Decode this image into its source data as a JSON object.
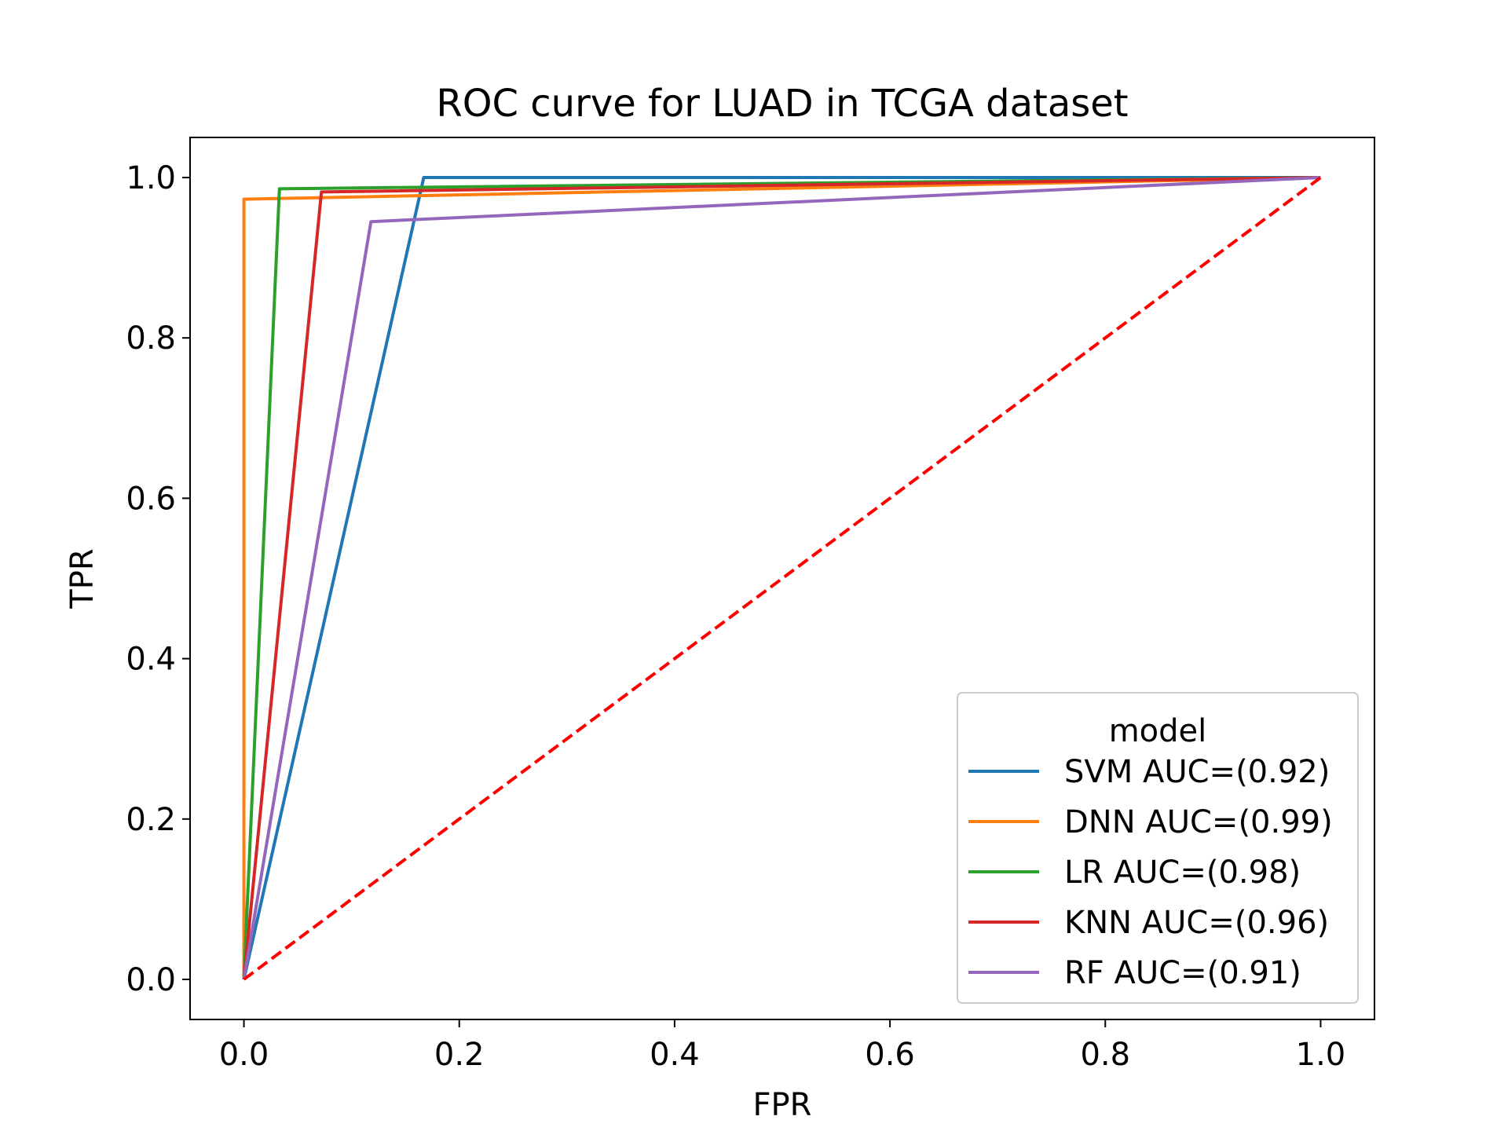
{
  "chart_data": {
    "type": "line",
    "title": "ROC curve for LUAD in TCGA dataset",
    "xlabel": "FPR",
    "ylabel": "TPR",
    "xlim": [
      -0.05,
      1.05
    ],
    "ylim": [
      -0.05,
      1.05
    ],
    "xticks": [
      0.0,
      0.2,
      0.4,
      0.6,
      0.8,
      1.0
    ],
    "yticks": [
      0.0,
      0.2,
      0.4,
      0.6,
      0.8,
      1.0
    ],
    "xtick_labels": [
      "0.0",
      "0.2",
      "0.4",
      "0.6",
      "0.8",
      "1.0"
    ],
    "ytick_labels": [
      "0.0",
      "0.2",
      "0.4",
      "0.6",
      "0.8",
      "1.0"
    ],
    "grid": false,
    "legend": {
      "title": "model",
      "placement": "lower-right"
    },
    "series": [
      {
        "name": "SVM AUC=(0.92)",
        "color": "#1f77b4",
        "x": [
          0,
          0.167,
          1.0
        ],
        "y": [
          0,
          1.0,
          1.0
        ]
      },
      {
        "name": "DNN AUC=(0.99)",
        "color": "#ff7f0e",
        "x": [
          0,
          0.0,
          1.0
        ],
        "y": [
          0,
          0.973,
          1.0
        ]
      },
      {
        "name": "LR AUC=(0.98)",
        "color": "#2ca02c",
        "x": [
          0,
          0.033,
          1.0
        ],
        "y": [
          0,
          0.986,
          1.0
        ]
      },
      {
        "name": "KNN AUC=(0.96)",
        "color": "#d62728",
        "x": [
          0,
          0.072,
          1.0
        ],
        "y": [
          0,
          0.982,
          1.0
        ]
      },
      {
        "name": "RF AUC=(0.91)",
        "color": "#9467bd",
        "x": [
          0,
          0.118,
          1.0
        ],
        "y": [
          0,
          0.945,
          1.0
        ]
      }
    ],
    "reference_line": {
      "x": [
        0,
        1
      ],
      "y": [
        0,
        1
      ],
      "color": "#ff0000",
      "style": "dashed"
    }
  }
}
